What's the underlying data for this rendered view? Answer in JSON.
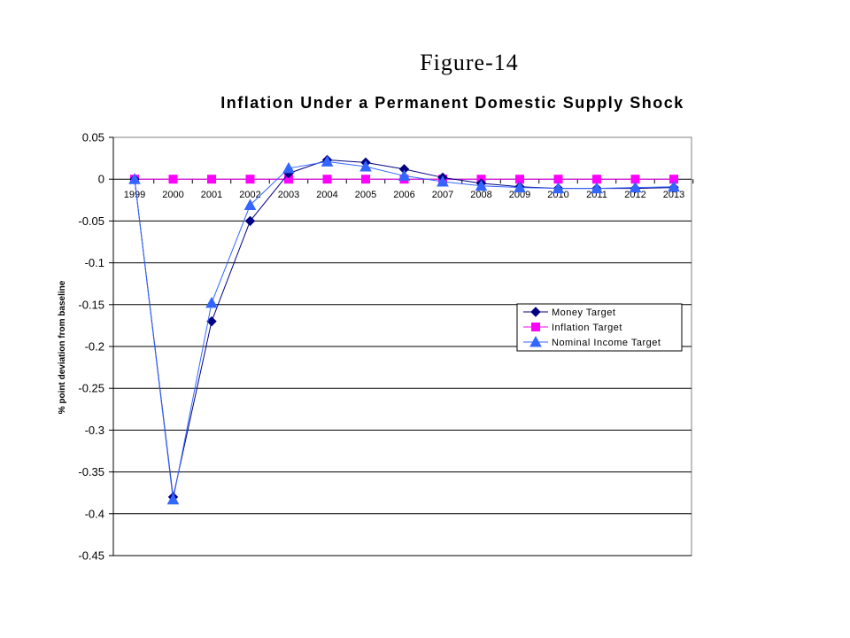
{
  "figure_label": "Figure-14",
  "chart_data": {
    "type": "line",
    "title": "Inflation Under a Permanent Domestic Supply Shock",
    "xlabel": "",
    "ylabel": "% point deviation from baseline",
    "ylim": [
      -0.45,
      0.05
    ],
    "yticks": [
      "0.05",
      "0",
      "-0.05",
      "-0.1",
      "-0.15",
      "-0.2",
      "-0.25",
      "-0.3",
      "-0.35",
      "-0.4",
      "-0.45"
    ],
    "ytick_values": [
      0.05,
      0,
      -0.05,
      -0.1,
      -0.15,
      -0.2,
      -0.25,
      -0.3,
      -0.35,
      -0.4,
      -0.45
    ],
    "categories": [
      "1999",
      "2000",
      "2001",
      "2002",
      "2003",
      "2004",
      "2005",
      "2006",
      "2007",
      "2008",
      "2009",
      "2010",
      "2011",
      "2012",
      "2013"
    ],
    "grid": true,
    "legend_position": "right",
    "series": [
      {
        "name": "Money Target",
        "color": "#000080",
        "marker": "diamond",
        "values": [
          0,
          -0.38,
          -0.17,
          -0.05,
          0.007,
          0.023,
          0.02,
          0.012,
          0.002,
          -0.005,
          -0.009,
          -0.011,
          -0.011,
          -0.011,
          -0.01
        ]
      },
      {
        "name": "Inflation Target",
        "color": "#ff00ff",
        "marker": "square",
        "values": [
          0,
          0,
          0,
          0,
          0,
          0,
          0,
          0,
          0,
          0,
          0,
          0,
          0,
          0,
          0
        ]
      },
      {
        "name": "Nominal Income Target",
        "color": "#3366ff",
        "marker": "triangle",
        "values": [
          0,
          -0.383,
          -0.148,
          -0.031,
          0.013,
          0.021,
          0.015,
          0.004,
          -0.003,
          -0.008,
          -0.01,
          -0.011,
          -0.011,
          -0.01,
          -0.009
        ]
      }
    ]
  }
}
